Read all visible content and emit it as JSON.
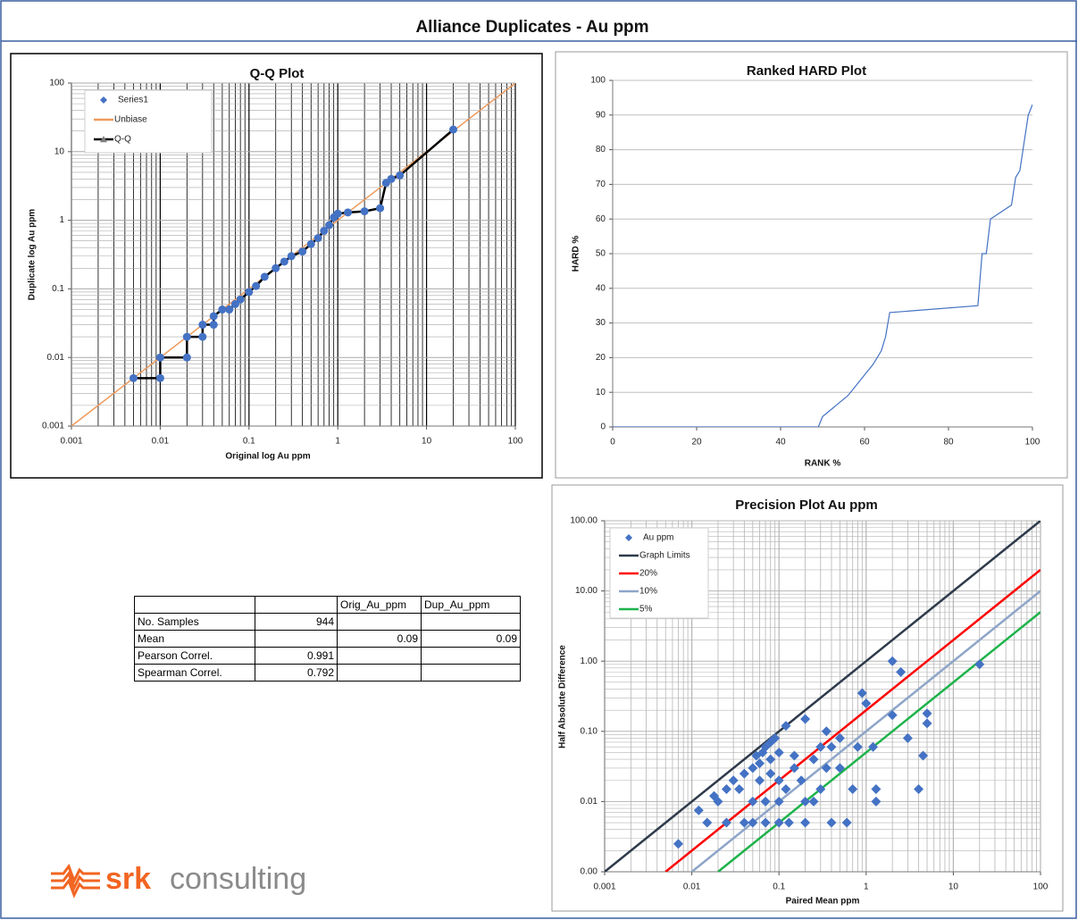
{
  "title": "Alliance Duplicates - Au ppm",
  "chart_data": [
    {
      "type": "scatter",
      "title": "Q-Q Plot",
      "x_label": "Original log Au ppm",
      "y_label": "Duplicate log Au ppm",
      "log_x": true,
      "log_y": true,
      "grid": true,
      "minor_grid": true,
      "xgrid_color": "#000000",
      "ygrid_color": "#a8a8a8",
      "legend": "upper left",
      "xlim": [
        0.001,
        100
      ],
      "ylim": [
        0.001,
        100
      ],
      "xticks": [
        0.001,
        0.01,
        0.1,
        1,
        10,
        100
      ],
      "yticks": [
        0.001,
        0.01,
        0.1,
        1,
        10,
        100
      ],
      "series": [
        {
          "name": "Series1",
          "type": "scatter",
          "marker": "circle",
          "color": "#4472c4",
          "x": [
            0.005,
            0.01,
            0.01,
            0.02,
            0.02,
            0.03,
            0.03,
            0.04,
            0.04,
            0.05,
            0.06,
            0.07,
            0.08,
            0.1,
            0.12,
            0.15,
            0.2,
            0.25,
            0.3,
            0.4,
            0.5,
            0.6,
            0.7,
            0.8,
            0.9,
            1,
            1.3,
            2,
            3,
            3.5,
            4,
            5,
            20
          ],
          "values": [
            0.005,
            0.005,
            0.01,
            0.01,
            0.02,
            0.02,
            0.03,
            0.03,
            0.04,
            0.05,
            0.05,
            0.06,
            0.07,
            0.09,
            0.11,
            0.15,
            0.2,
            0.25,
            0.3,
            0.35,
            0.45,
            0.55,
            0.7,
            0.85,
            1.1,
            1.25,
            1.3,
            1.35,
            1.5,
            3.5,
            4,
            4.5,
            21
          ]
        },
        {
          "name": "Unbiase",
          "type": "line",
          "color": "#ed9a5c",
          "x": [
            0.001,
            100
          ],
          "values": [
            0.001,
            100
          ]
        },
        {
          "name": "Q-Q",
          "type": "line",
          "marker": "triangle",
          "color": "#000000",
          "x": [
            0.005,
            0.01,
            0.01,
            0.02,
            0.02,
            0.03,
            0.03,
            0.04,
            0.04,
            0.05,
            0.06,
            0.07,
            0.08,
            0.1,
            0.12,
            0.15,
            0.2,
            0.25,
            0.3,
            0.4,
            0.5,
            0.6,
            0.7,
            0.8,
            0.9,
            1,
            1.3,
            2,
            3,
            3.5,
            4,
            5,
            20
          ],
          "values": [
            0.005,
            0.005,
            0.01,
            0.01,
            0.02,
            0.02,
            0.03,
            0.03,
            0.04,
            0.05,
            0.05,
            0.06,
            0.07,
            0.09,
            0.11,
            0.15,
            0.2,
            0.25,
            0.3,
            0.35,
            0.45,
            0.55,
            0.7,
            0.85,
            1.1,
            1.25,
            1.3,
            1.35,
            1.5,
            3.5,
            4,
            4.5,
            21
          ]
        }
      ]
    },
    {
      "type": "line",
      "title": "Ranked HARD Plot",
      "x_label": "RANK %",
      "y_label": "HARD %",
      "log_x": false,
      "log_y": false,
      "grid": true,
      "minor_grid": false,
      "xgrid": false,
      "ygrid_color": "#bfbfbf",
      "xlim": [
        0,
        100
      ],
      "ylim": [
        0,
        100
      ],
      "xticks": [
        0,
        20,
        40,
        60,
        80,
        100
      ],
      "yticks": [
        0,
        10,
        20,
        30,
        40,
        50,
        60,
        70,
        80,
        90,
        100
      ],
      "series": [
        {
          "type": "line",
          "color": "#4472c4",
          "x": [
            0,
            49,
            50,
            52,
            54,
            56,
            58,
            60,
            62,
            63,
            64,
            65,
            66,
            87,
            88,
            89,
            90,
            95,
            96,
            97,
            99,
            100
          ],
          "values": [
            0,
            0,
            3,
            5,
            7,
            9,
            12,
            15,
            18,
            20,
            22,
            26,
            33,
            35,
            50,
            50,
            60,
            64,
            72,
            74,
            90,
            93
          ]
        }
      ]
    },
    {
      "type": "scatter",
      "title": "Precision Plot Au ppm",
      "x_label": "Paired Mean ppm",
      "y_label": "Half Absolute Difference",
      "log_x": true,
      "log_y": true,
      "grid": true,
      "minor_grid": true,
      "xgrid_color": "#b5b5b5",
      "ygrid_color": "#b5b5b5",
      "legend": "upper left",
      "xlim": [
        0.001,
        100
      ],
      "ylim": [
        0.001,
        100
      ],
      "xticks": [
        0.001,
        0.01,
        0.1,
        1,
        10,
        100
      ],
      "yticks": [
        {
          "value": 0.001,
          "label": "0.00"
        },
        {
          "value": 0.01,
          "label": "0.01"
        },
        {
          "value": 0.1,
          "label": "0.10"
        },
        {
          "value": 1,
          "label": "1.00"
        },
        {
          "value": 10,
          "label": "10.00"
        },
        {
          "value": 100,
          "label": "100.00"
        }
      ],
      "series": [
        {
          "name": "Au ppm",
          "type": "scatter",
          "marker": "diamond",
          "color": "#4472c4",
          "x": [
            0.007,
            0.012,
            0.015,
            0.018,
            0.02,
            0.025,
            0.025,
            0.03,
            0.035,
            0.04,
            0.04,
            0.05,
            0.05,
            0.05,
            0.055,
            0.06,
            0.06,
            0.065,
            0.07,
            0.07,
            0.07,
            0.08,
            0.08,
            0.08,
            0.09,
            0.1,
            0.1,
            0.1,
            0.1,
            0.12,
            0.12,
            0.13,
            0.15,
            0.15,
            0.18,
            0.2,
            0.2,
            0.2,
            0.25,
            0.25,
            0.3,
            0.3,
            0.35,
            0.35,
            0.4,
            0.4,
            0.5,
            0.5,
            0.6,
            0.7,
            0.8,
            0.9,
            1,
            1.2,
            1.3,
            1.3,
            2,
            2.5,
            2,
            3,
            4,
            4.5,
            5,
            5,
            20
          ],
          "values": [
            0.0025,
            0.0075,
            0.005,
            0.012,
            0.01,
            0.015,
            0.005,
            0.02,
            0.015,
            0.025,
            0.005,
            0.03,
            0.01,
            0.005,
            0.045,
            0.035,
            0.02,
            0.05,
            0.06,
            0.01,
            0.005,
            0.07,
            0.04,
            0.025,
            0.08,
            0.05,
            0.02,
            0.01,
            0.005,
            0.12,
            0.015,
            0.005,
            0.045,
            0.03,
            0.02,
            0.15,
            0.01,
            0.005,
            0.04,
            0.01,
            0.06,
            0.015,
            0.1,
            0.03,
            0.06,
            0.005,
            0.03,
            0.08,
            0.005,
            0.015,
            0.06,
            0.35,
            0.25,
            0.06,
            0.015,
            0.01,
            1,
            0.7,
            0.17,
            0.08,
            0.015,
            0.045,
            0.18,
            0.13,
            0.9
          ]
        },
        {
          "name": "Graph Limits",
          "type": "line",
          "color": "#2e3a4b",
          "x": [
            0.001,
            100
          ],
          "values": [
            0.001,
            100
          ]
        },
        {
          "name": "20%",
          "type": "line",
          "color": "#ff0000",
          "x": [
            0.005,
            100
          ],
          "values": [
            0.001,
            20
          ]
        },
        {
          "name": "10%",
          "type": "line",
          "color": "#8ea5c8",
          "x": [
            0.01,
            100
          ],
          "values": [
            0.001,
            10
          ]
        },
        {
          "name": "5%",
          "type": "line",
          "color": "#1db34a",
          "x": [
            0.02,
            100
          ],
          "values": [
            0.001,
            5
          ]
        }
      ]
    }
  ],
  "table": {
    "header": [
      null,
      null,
      "Orig_Au_ppm",
      "Dup_Au_ppm"
    ],
    "rows": [
      [
        "No. Samples",
        944,
        null,
        null
      ],
      [
        "Mean",
        null,
        0.09,
        0.09
      ],
      [
        "Pearson Correl.",
        0.991,
        null,
        null
      ],
      [
        "Spearman Correl.",
        0.792,
        null,
        null
      ]
    ]
  },
  "logo": {
    "mark": "srk",
    "word": "consulting"
  }
}
